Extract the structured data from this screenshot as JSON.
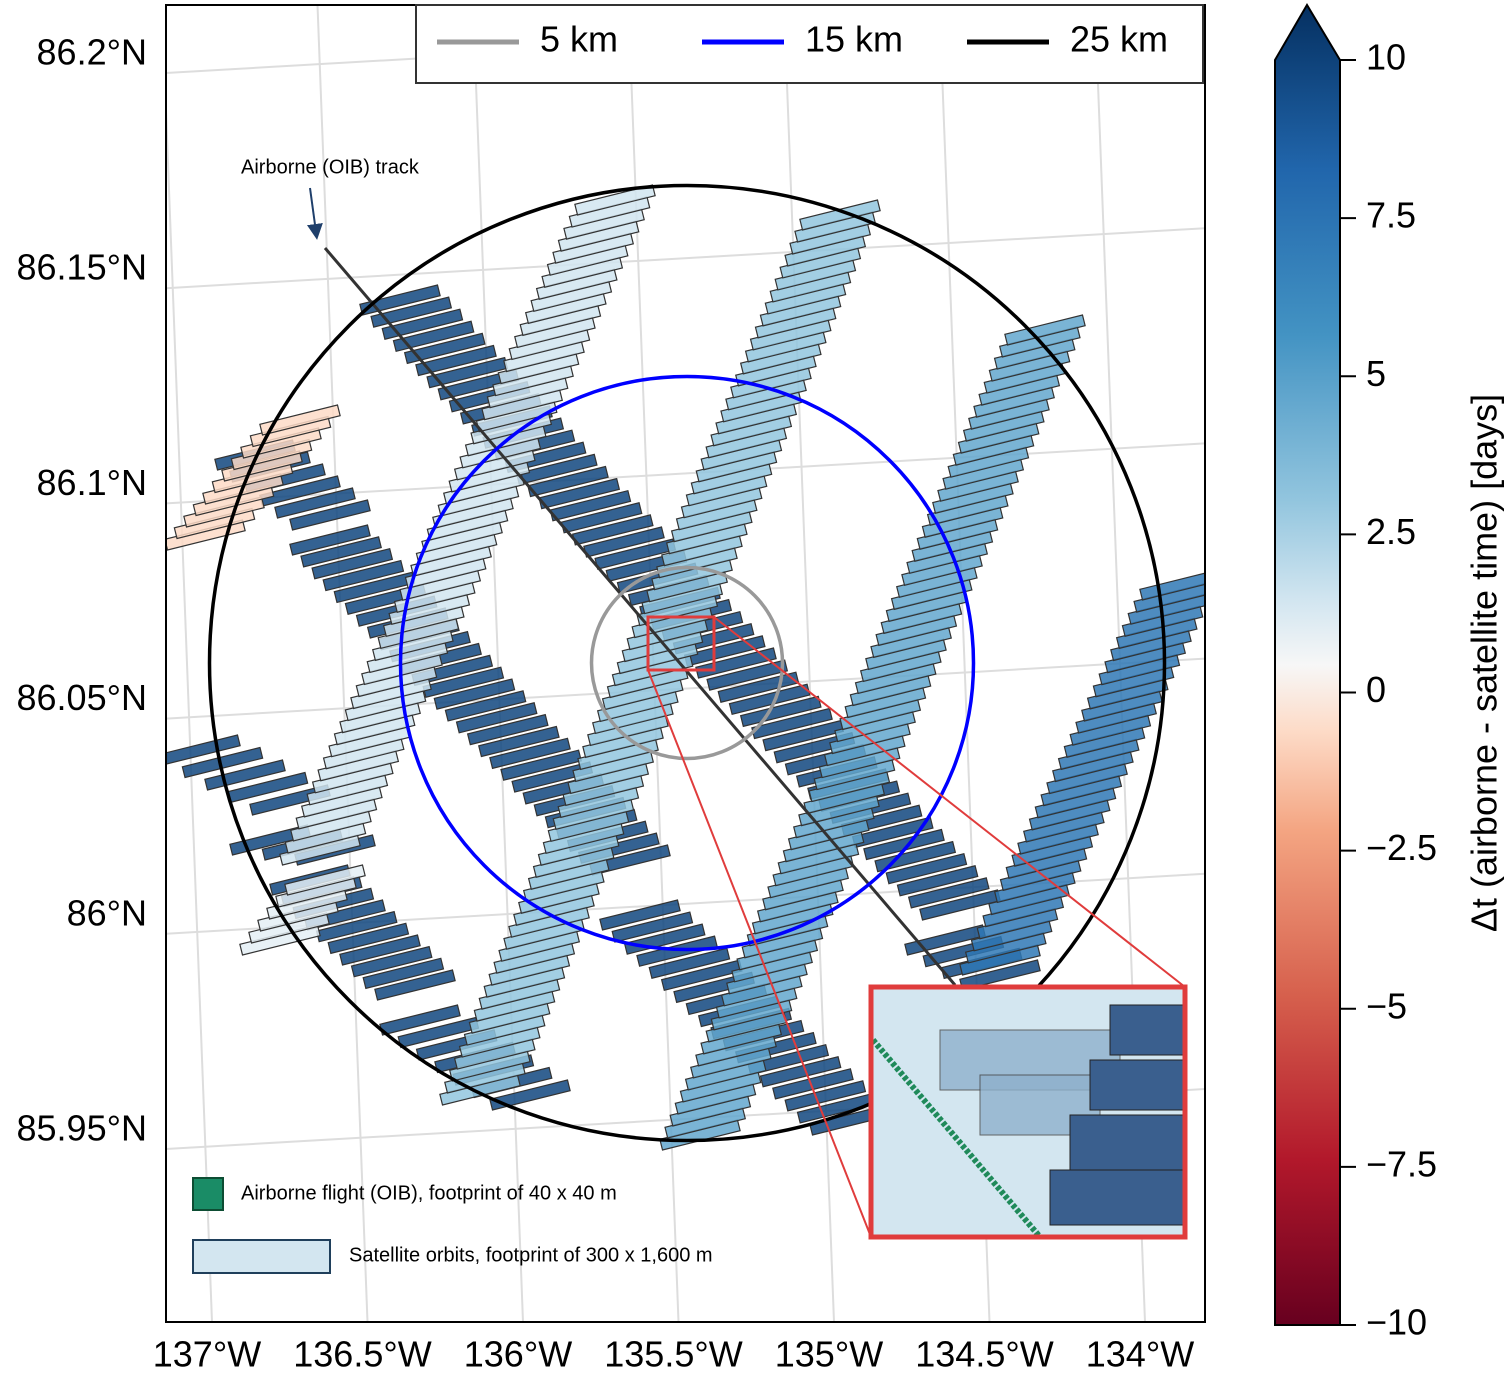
{
  "map": {
    "lat_ticks": [
      {
        "value": 86.2,
        "label": "86.2°N"
      },
      {
        "value": 86.15,
        "label": "86.15°N"
      },
      {
        "value": 86.1,
        "label": "86.1°N"
      },
      {
        "value": 86.05,
        "label": "86.05°N"
      },
      {
        "value": 86,
        "label": "86°N"
      },
      {
        "value": 85.95,
        "label": "85.95°N"
      }
    ],
    "lon_ticks": [
      {
        "value": -137,
        "label": "137°W"
      },
      {
        "value": -136.5,
        "label": "136.5°W"
      },
      {
        "value": -136,
        "label": "136°W"
      },
      {
        "value": -135.5,
        "label": "135.5°W"
      },
      {
        "value": -135,
        "label": "135°W"
      },
      {
        "value": -134.5,
        "label": "134.5°W"
      },
      {
        "value": -134,
        "label": "134°W"
      }
    ],
    "rings": [
      {
        "label": "5 km",
        "radius": 5,
        "color": "#999999"
      },
      {
        "label": "15 km",
        "radius": 15,
        "color": "#0000ff"
      },
      {
        "label": "25 km",
        "radius": 25,
        "color": "#000000"
      }
    ],
    "annotation": "Airborne (OIB) track",
    "footprint_legend": [
      "Airborne flight (OIB), footprint of 40 x 40 m",
      "Satellite orbits, footprint of 300 x 1,600 m"
    ],
    "satellite_dt": [
      9,
      9,
      9,
      9,
      9,
      9,
      9,
      9,
      9,
      1,
      2.5,
      4,
      6.5,
      -1,
      0.5
    ],
    "colorbar": {
      "label": "Δt (airborne - satellite time) [days]",
      "lim": [
        -10,
        10
      ],
      "ticks": [
        10,
        7.5,
        5,
        2.5,
        0,
        {
          "value": -2.5,
          "label": "−2.5"
        },
        {
          "value": -5,
          "label": "−5"
        },
        {
          "value": -7.5,
          "label": "−7.5"
        },
        {
          "value": -10,
          "label": "−10"
        }
      ]
    }
  }
}
